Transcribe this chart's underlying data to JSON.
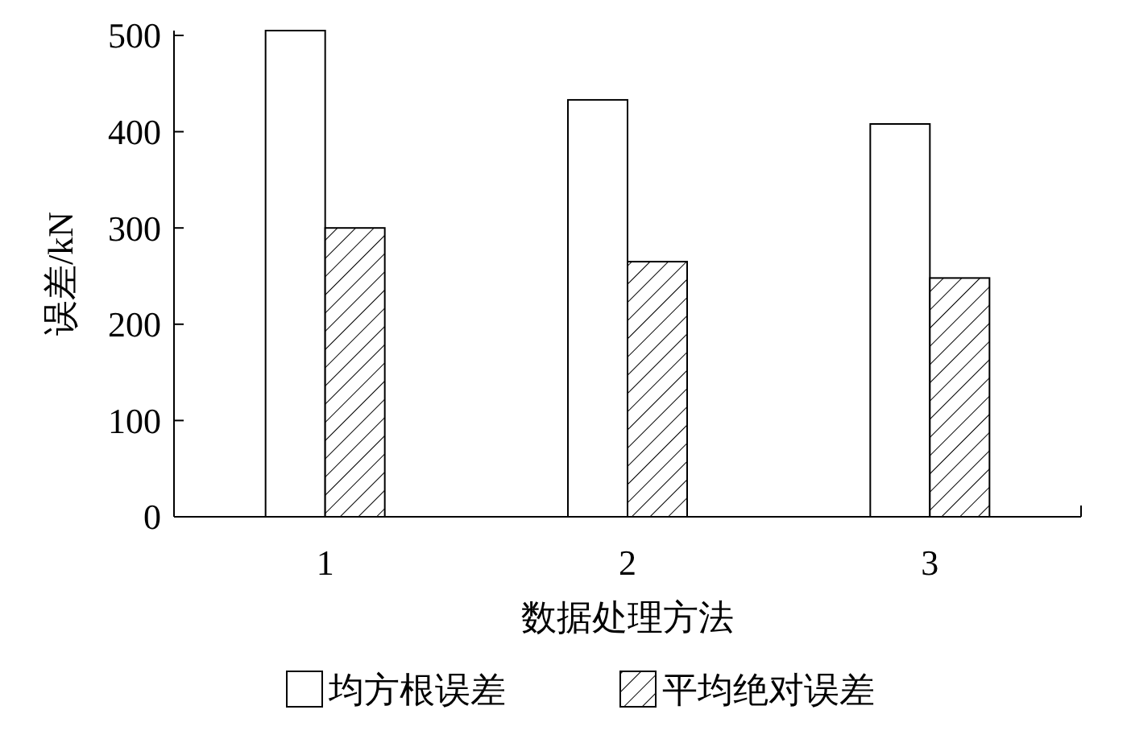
{
  "chart_data": {
    "type": "bar",
    "xlabel": "数据处理方法",
    "ylabel": "误差/kN",
    "categories": [
      "1",
      "2",
      "3"
    ],
    "series": [
      {
        "name": "均方根误差",
        "color": "#ffffff",
        "values": [
          505,
          433,
          408
        ]
      },
      {
        "name": "平均绝对误差",
        "color": "#000000",
        "values": [
          300,
          265,
          248
        ]
      }
    ],
    "ylim": [
      0,
      505
    ],
    "yticks": [
      0,
      100,
      200,
      300,
      400,
      500
    ],
    "legend": "bottom"
  }
}
